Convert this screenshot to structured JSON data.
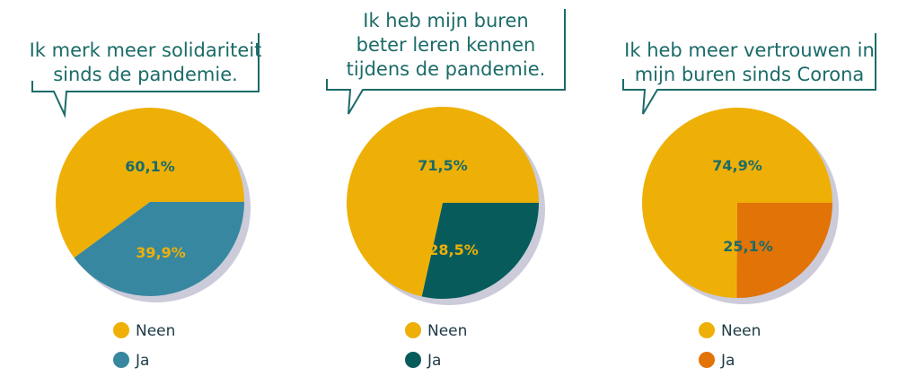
{
  "colors": {
    "neen": "#eeb007",
    "text": "#1b6b68",
    "shadow": "#cccbda"
  },
  "chart_data": [
    {
      "type": "pie",
      "title_lines": [
        "Ik merk meer solidariteit",
        "sinds de pandemie."
      ],
      "slices": [
        {
          "label": "Neen",
          "value": 60.1,
          "display": "60,1%",
          "color": "#eeb007",
          "text_color": "#1b6b68"
        },
        {
          "label": "Ja",
          "value": 39.9,
          "display": "39,9%",
          "color": "#3787a0",
          "text_color": "#eeb007"
        }
      ]
    },
    {
      "type": "pie",
      "title_lines": [
        "Ik heb mijn buren",
        "beter leren kennen",
        "tijdens de pandemie."
      ],
      "slices": [
        {
          "label": "Neen",
          "value": 71.5,
          "display": "71,5%",
          "color": "#eeb007",
          "text_color": "#1b6b68"
        },
        {
          "label": "Ja",
          "value": 28.5,
          "display": "28,5%",
          "color": "#075c5b",
          "text_color": "#eeb007"
        }
      ]
    },
    {
      "type": "pie",
      "title_lines": [
        "Ik heb meer vertrouwen in",
        "mijn buren sinds Corona"
      ],
      "slices": [
        {
          "label": "Neen",
          "value": 74.9,
          "display": "74,9%",
          "color": "#eeb007",
          "text_color": "#1b6b68"
        },
        {
          "label": "Ja",
          "value": 25.1,
          "display": "25,1%",
          "color": "#e17307",
          "text_color": "#1b6b68"
        }
      ]
    }
  ]
}
